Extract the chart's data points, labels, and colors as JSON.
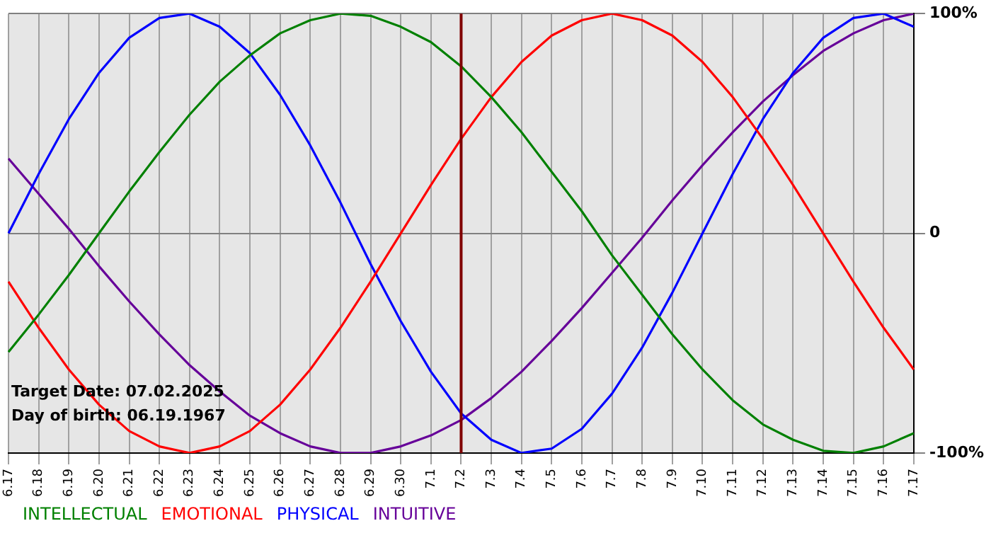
{
  "chart_data": {
    "type": "line",
    "categories": [
      "6.17",
      "6.18",
      "6.19",
      "6.20",
      "6.21",
      "6.22",
      "6.23",
      "6.24",
      "6.25",
      "6.26",
      "6.27",
      "6.28",
      "6.29",
      "6.30",
      "7.1",
      "7.2",
      "7.3",
      "7.4",
      "7.5",
      "7.6",
      "7.7",
      "7.8",
      "7.9",
      "7.10",
      "7.11",
      "7.12",
      "7.13",
      "7.14",
      "7.15",
      "7.16",
      "7.17"
    ],
    "series": [
      {
        "name": "INTELLECTUAL",
        "color": "#008000",
        "values": [
          -54,
          -37,
          -19,
          0,
          19,
          37,
          54,
          69,
          81,
          91,
          97,
          100,
          99,
          94,
          87,
          76,
          62,
          46,
          28,
          10,
          -10,
          -28,
          -46,
          -62,
          -76,
          -87,
          -94,
          -99,
          -100,
          -97,
          -91
        ]
      },
      {
        "name": "EMOTIONAL",
        "color": "#ff0000",
        "values": [
          -22,
          -43,
          -62,
          -78,
          -90,
          -97,
          -100,
          -97,
          -90,
          -78,
          -62,
          -43,
          -22,
          0,
          22,
          43,
          62,
          78,
          90,
          97,
          100,
          97,
          90,
          78,
          62,
          43,
          22,
          0,
          -22,
          -43,
          -62
        ]
      },
      {
        "name": "PHYSICAL",
        "color": "#0000ff",
        "values": [
          0,
          27,
          52,
          73,
          89,
          98,
          100,
          94,
          82,
          63,
          40,
          14,
          -14,
          -40,
          -63,
          -82,
          -94,
          -100,
          -98,
          -89,
          -73,
          -52,
          -27,
          0,
          27,
          52,
          73,
          89,
          98,
          100,
          94
        ]
      },
      {
        "name": "INTUITIVE",
        "color": "#660099",
        "values": [
          34,
          18,
          2,
          -15,
          -31,
          -46,
          -60,
          -72,
          -83,
          -91,
          -97,
          -100,
          -100,
          -97,
          -92,
          -85,
          -75,
          -63,
          -49,
          -34,
          -18,
          -2,
          15,
          31,
          46,
          60,
          72,
          83,
          91,
          97,
          100
        ]
      }
    ],
    "ylim": [
      -100,
      100
    ],
    "yticks": [
      {
        "value": -100,
        "label": "-100%"
      },
      0,
      {
        "value": 100,
        "label": "100%"
      }
    ],
    "grid": true,
    "legend": "bottom",
    "marker": "none",
    "line_style": "solid",
    "ref_lines": [
      {
        "axis": "x",
        "value": "7.2",
        "color": "#800000"
      }
    ],
    "annotations": [
      "Target Date: 07.02.2025",
      "Day of birth: 06.19.1967"
    ]
  }
}
